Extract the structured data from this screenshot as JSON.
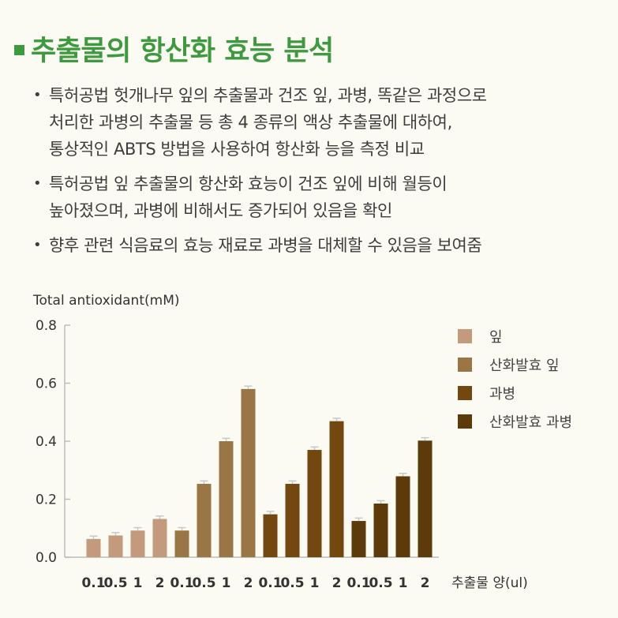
{
  "title": "추출물의 항산화 효능 분석",
  "bullets": [
    {
      "lines": [
        "특허공법 헛개나무 잎의 추출물과 건조 잎, 과병, 똑같은 과정으로",
        "처리한 과병의 추출물 등 총 4 종류의 액상 추출물에 대하여,",
        "통상적인 ABTS 방법을 사용하여 항산화 능을 측정 비교"
      ]
    },
    {
      "lines": [
        "특허공법 잎 추출물의 항산화 효능이 건조 잎에 비해 월등이",
        "높아졌으며, 과병에 비해서도 증가되어 있음을 확인"
      ]
    },
    {
      "lines": [
        "향후 관련 식음료의 효능 재료로 과병을 대체할 수 있음을 보여줌"
      ]
    }
  ],
  "chart_data": {
    "type": "bar",
    "ylabel": "Total antioxidant(mM)",
    "xlabel": "추출물 양(ul)",
    "ylim": [
      0,
      0.8
    ],
    "yticks": [
      "0.0",
      "0.2",
      "0.4",
      "0.6",
      "0.8"
    ],
    "categories": [
      "0.1",
      "0.5",
      "1",
      "2"
    ],
    "x_tick_labels": [
      "0.1",
      "0.5",
      "1",
      "2",
      "0.1",
      "0.5",
      "1",
      "2",
      "0.1",
      "0.5",
      "1",
      "2",
      "0.1",
      "0.5",
      "1",
      "2"
    ],
    "legend_position": "right",
    "series": [
      {
        "name": "잎",
        "color": "#c49a7c",
        "values": [
          0.063,
          0.075,
          0.092,
          0.132
        ],
        "errors": [
          0.01,
          0.01,
          0.01,
          0.01
        ]
      },
      {
        "name": "산화발효 잎",
        "color": "#9a7546",
        "values": [
          0.092,
          0.253,
          0.4,
          0.58
        ],
        "errors": [
          0.01,
          0.01,
          0.01,
          0.01
        ]
      },
      {
        "name": "과병",
        "color": "#734810",
        "values": [
          0.148,
          0.253,
          0.37,
          0.469
        ],
        "errors": [
          0.01,
          0.01,
          0.01,
          0.01
        ]
      },
      {
        "name": "산화발효 과병",
        "color": "#5c3a0a",
        "values": [
          0.125,
          0.185,
          0.279,
          0.402
        ],
        "errors": [
          0.01,
          0.01,
          0.01,
          0.01
        ]
      }
    ]
  }
}
